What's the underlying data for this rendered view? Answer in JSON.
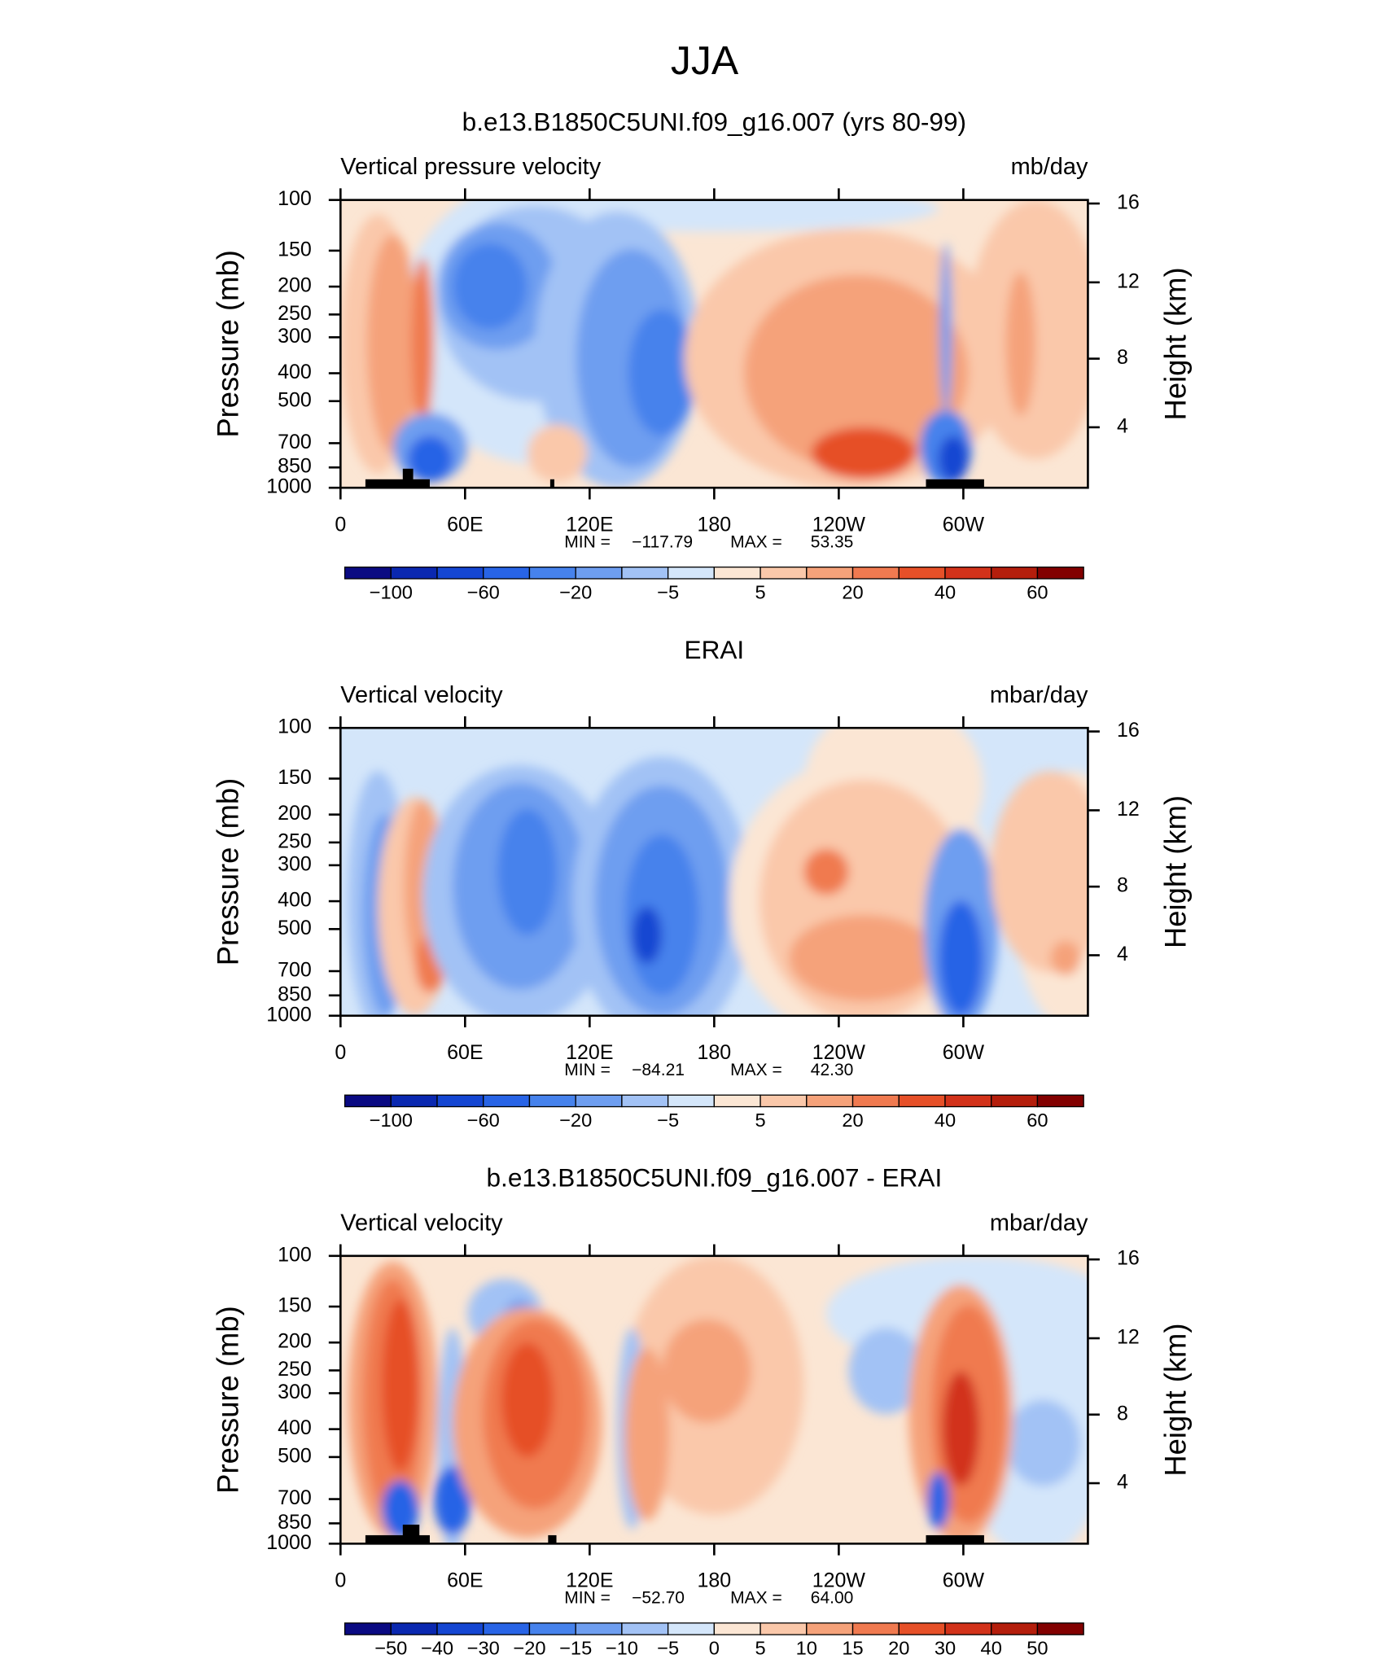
{
  "title": "JJA",
  "chart_data": [
    {
      "type": "contour",
      "title": "b.e13.B1850C5UNI.f09_g16.007 (yrs 80-99)",
      "left_label": "Vertical pressure velocity",
      "right_label": "mb/day",
      "ylabel": "Pressure (mb)",
      "y2label": "Height (km)",
      "xlim": [
        0,
        360
      ],
      "xticks": [
        0,
        {
          "value": 60,
          "label": "60E"
        },
        {
          "value": 120,
          "label": "120E"
        },
        180,
        {
          "value": 240,
          "label": "120W"
        },
        {
          "value": 300,
          "label": "60W"
        }
      ],
      "ylim": [
        1000,
        100
      ],
      "log_y": true,
      "yticks": [
        100,
        150,
        200,
        250,
        300,
        400,
        500,
        700,
        850,
        1000
      ],
      "y2ticks": [
        4,
        8,
        12,
        16
      ],
      "min_label": "MIN =",
      "min": {
        "value": -117.79,
        "label": "−117.79"
      },
      "max_label": "MAX =",
      "max": 53.35,
      "colorbar": {
        "colors": [
          "#0a0a82",
          "#0a28b0",
          "#1446d2",
          "#2864e6",
          "#4682ec",
          "#6e9ef0",
          "#a2c2f5",
          "#d4e6fa",
          "#fbe6d4",
          "#fac8aa",
          "#f5a27a",
          "#f07a50",
          "#e65028",
          "#d2321a",
          "#b41e0c",
          "#820000"
        ],
        "ticks": [
          {
            "value": -100,
            "label": "−100"
          },
          {
            "value": -60,
            "label": "−60"
          },
          {
            "value": -20,
            "label": "−20"
          },
          {
            "value": -5,
            "label": "−5"
          },
          5,
          20,
          40,
          60
        ]
      }
    },
    {
      "type": "contour",
      "title": "ERAI",
      "left_label": "Vertical velocity",
      "right_label": "mbar/day",
      "ylabel": "Pressure (mb)",
      "y2label": "Height (km)",
      "xlim": [
        0,
        360
      ],
      "xticks": [
        0,
        {
          "value": 60,
          "label": "60E"
        },
        {
          "value": 120,
          "label": "120E"
        },
        180,
        {
          "value": 240,
          "label": "120W"
        },
        {
          "value": 300,
          "label": "60W"
        }
      ],
      "ylim": [
        1000,
        100
      ],
      "log_y": true,
      "yticks": [
        100,
        150,
        200,
        250,
        300,
        400,
        500,
        700,
        850,
        1000
      ],
      "y2ticks": [
        4,
        8,
        12,
        16
      ],
      "min_label": "MIN =",
      "min": {
        "value": -84.21,
        "label": "−84.21"
      },
      "max_label": "MAX =",
      "max": {
        "value": 42.3,
        "label": "42.30"
      },
      "colorbar": {
        "colors": [
          "#0a0a82",
          "#0a28b0",
          "#1446d2",
          "#2864e6",
          "#4682ec",
          "#6e9ef0",
          "#a2c2f5",
          "#d4e6fa",
          "#fbe6d4",
          "#fac8aa",
          "#f5a27a",
          "#f07a50",
          "#e65028",
          "#d2321a",
          "#b41e0c",
          "#820000"
        ],
        "ticks": [
          {
            "value": -100,
            "label": "−100"
          },
          {
            "value": -60,
            "label": "−60"
          },
          {
            "value": -20,
            "label": "−20"
          },
          {
            "value": -5,
            "label": "−5"
          },
          5,
          20,
          40,
          60
        ]
      }
    },
    {
      "type": "contour",
      "title": "b.e13.B1850C5UNI.f09_g16.007 - ERAI",
      "left_label": "Vertical velocity",
      "right_label": "mbar/day",
      "ylabel": "Pressure (mb)",
      "y2label": "Height (km)",
      "xlim": [
        0,
        360
      ],
      "xticks": [
        0,
        {
          "value": 60,
          "label": "60E"
        },
        {
          "value": 120,
          "label": "120E"
        },
        180,
        {
          "value": 240,
          "label": "120W"
        },
        {
          "value": 300,
          "label": "60W"
        }
      ],
      "ylim": [
        1000,
        100
      ],
      "log_y": true,
      "yticks": [
        100,
        150,
        200,
        250,
        300,
        400,
        500,
        700,
        850,
        1000
      ],
      "y2ticks": [
        4,
        8,
        12,
        16
      ],
      "min_label": "MIN =",
      "min": {
        "value": -52.7,
        "label": "−52.70"
      },
      "max_label": "MAX =",
      "max": {
        "value": 64,
        "label": "64.00"
      },
      "colorbar": {
        "colors": [
          "#0a0a82",
          "#0a28b0",
          "#1446d2",
          "#2864e6",
          "#4682ec",
          "#6e9ef0",
          "#a2c2f5",
          "#d4e6fa",
          "#fbe6d4",
          "#fac8aa",
          "#f5a27a",
          "#f07a50",
          "#e65028",
          "#d2321a",
          "#b41e0c",
          "#820000"
        ],
        "ticks": [
          {
            "value": -50,
            "label": "−50"
          },
          {
            "value": -40,
            "label": "−40"
          },
          {
            "value": -30,
            "label": "−30"
          },
          {
            "value": -20,
            "label": "−20"
          },
          {
            "value": -15,
            "label": "−15"
          },
          {
            "value": -10,
            "label": "−10"
          },
          {
            "value": -5,
            "label": "−5"
          },
          0,
          5,
          10,
          15,
          20,
          30,
          40,
          50
        ]
      }
    }
  ]
}
